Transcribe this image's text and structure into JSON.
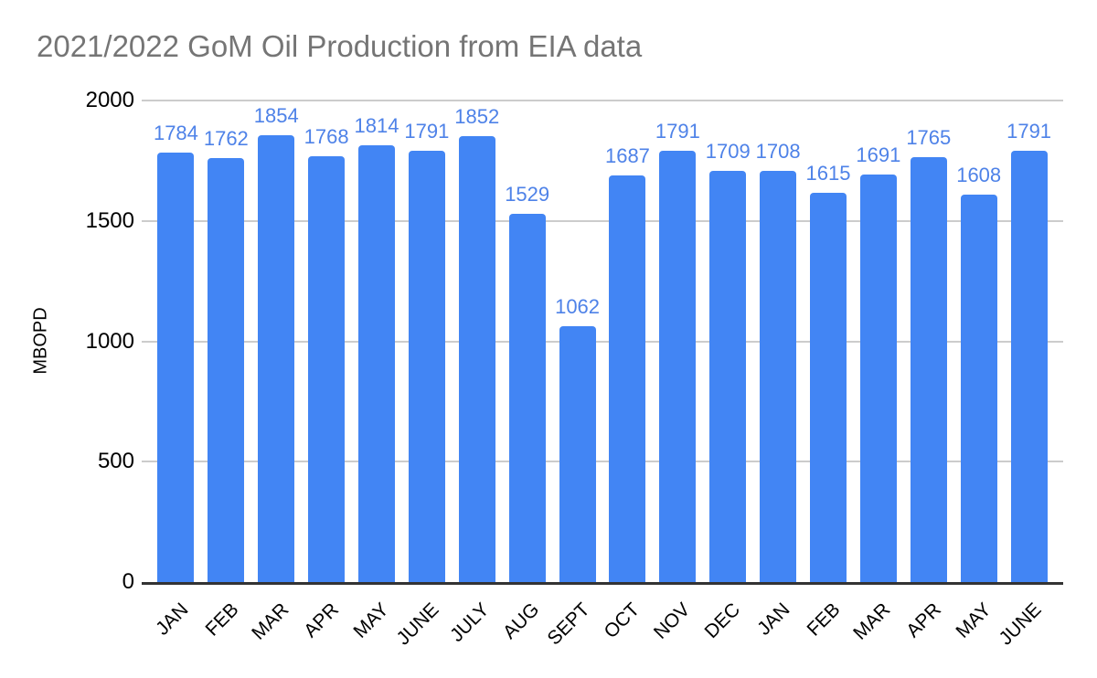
{
  "chart_data": {
    "type": "bar",
    "title": "2021/2022 GoM Oil Production from EIA data",
    "xlabel": "",
    "ylabel": "MBOPD",
    "categories": [
      "JAN",
      "FEB",
      "MAR",
      "APR",
      "MAY",
      "JUNE",
      "JULY",
      "AUG",
      "SEPT",
      "OCT",
      "NOV",
      "DEC",
      "JAN",
      "FEB",
      "MAR",
      "APR",
      "MAY",
      "JUNE"
    ],
    "values": [
      1784,
      1762,
      1854,
      1768,
      1814,
      1791,
      1852,
      1529,
      1062,
      1687,
      1791,
      1709,
      1708,
      1615,
      1691,
      1765,
      1608,
      1791
    ],
    "ylim": [
      0,
      2000
    ],
    "yticks": [
      0,
      500,
      1000,
      1500,
      2000
    ],
    "grid": true,
    "legend_position": "none",
    "data_labels": true,
    "colors": {
      "bar": "#4285f4",
      "data_label": "#4e82e8",
      "title": "#757575",
      "axis_text": "#000000",
      "gridline": "#cccccc",
      "axis_line": "#333333",
      "background": "#ffffff"
    }
  }
}
